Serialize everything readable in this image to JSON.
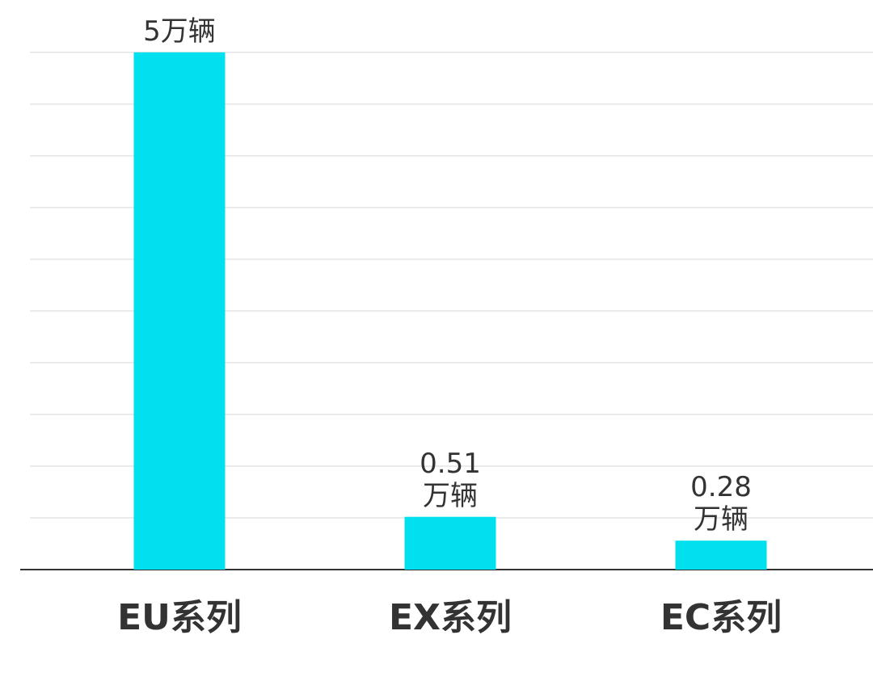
{
  "chart_data": {
    "type": "bar",
    "categories": [
      "EU系列",
      "EX系列",
      "EC系列"
    ],
    "values": [
      5,
      0.51,
      0.28
    ],
    "value_labels": [
      "5万辆",
      "0.51\n万辆",
      "0.28\n万辆"
    ],
    "color": "#00e0ef",
    "ylim": [
      0,
      5.1
    ],
    "yticks": [
      0.5,
      1,
      1.5,
      2,
      2.5,
      3,
      3.5,
      4,
      4.5,
      5
    ],
    "grid": true
  }
}
